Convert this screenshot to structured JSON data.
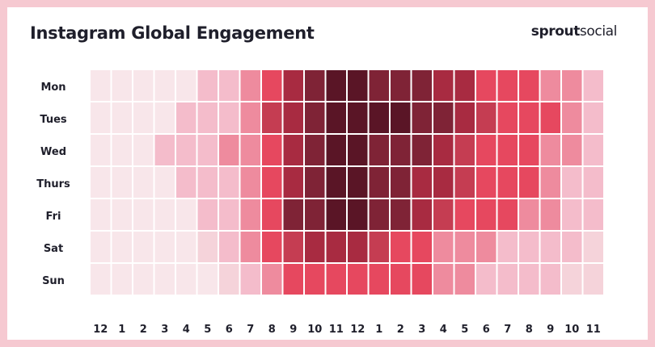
{
  "header": {
    "title": "Instagram Global Engagement",
    "brand_bold": "sprout",
    "brand_light": "social"
  },
  "colors": {
    "background": "#f6c9d1",
    "levels": [
      "#f8e6ea",
      "#f5d3da",
      "#f4bccb",
      "#ee8b9e",
      "#e6485f",
      "#c53d52",
      "#a82b41",
      "#7f2336",
      "#5a1526"
    ]
  },
  "chart_data": {
    "type": "heatmap",
    "title": "Instagram Global Engagement",
    "x": [
      "12",
      "1",
      "2",
      "3",
      "4",
      "5",
      "6",
      "7",
      "8",
      "9",
      "10",
      "11",
      "12",
      "1",
      "2",
      "3",
      "4",
      "5",
      "6",
      "7",
      "8",
      "9",
      "10",
      "11"
    ],
    "y": [
      "Mon",
      "Tues",
      "Wed",
      "Thurs",
      "Fri",
      "Sat",
      "Sun"
    ],
    "value_scale": [
      0,
      8
    ],
    "values": [
      [
        0,
        0,
        0,
        0,
        0,
        2,
        2,
        3,
        4,
        6,
        7,
        8,
        8,
        7,
        7,
        7,
        6,
        6,
        4,
        4,
        4,
        3,
        3,
        2
      ],
      [
        0,
        0,
        0,
        0,
        2,
        2,
        2,
        3,
        5,
        6,
        7,
        8,
        8,
        8,
        8,
        7,
        7,
        6,
        5,
        4,
        4,
        4,
        3,
        2
      ],
      [
        0,
        0,
        0,
        2,
        2,
        2,
        3,
        3,
        4,
        6,
        7,
        8,
        8,
        7,
        7,
        7,
        6,
        5,
        4,
        4,
        4,
        3,
        3,
        2
      ],
      [
        0,
        0,
        0,
        0,
        2,
        2,
        2,
        3,
        4,
        6,
        7,
        8,
        8,
        7,
        7,
        6,
        6,
        5,
        4,
        4,
        4,
        3,
        2,
        2
      ],
      [
        0,
        0,
        0,
        0,
        0,
        2,
        2,
        3,
        4,
        7,
        7,
        8,
        8,
        7,
        7,
        6,
        5,
        4,
        4,
        4,
        3,
        3,
        2,
        2
      ],
      [
        0,
        0,
        0,
        0,
        0,
        1,
        2,
        3,
        4,
        5,
        6,
        6,
        6,
        5,
        4,
        4,
        3,
        3,
        3,
        2,
        2,
        2,
        2,
        1
      ],
      [
        0,
        0,
        0,
        0,
        0,
        0,
        1,
        2,
        3,
        4,
        4,
        4,
        4,
        4,
        4,
        4,
        3,
        3,
        2,
        2,
        2,
        2,
        1,
        1
      ]
    ]
  }
}
